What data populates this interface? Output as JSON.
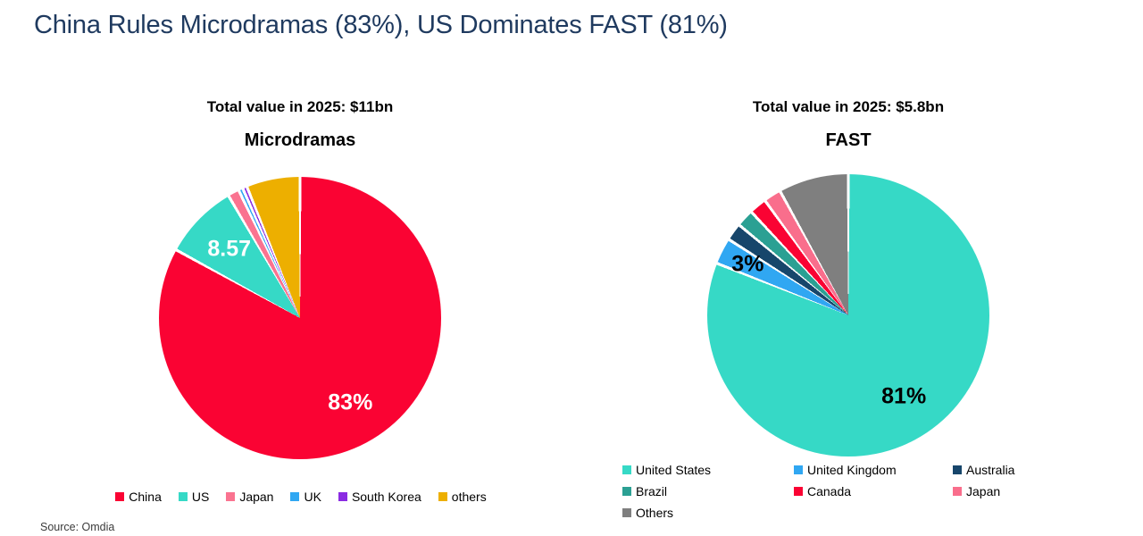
{
  "page": {
    "title": "China Rules Microdramas (83%), US Dominates FAST (81%)",
    "title_color": "#1F3A5F",
    "source": "Source: Omdia"
  },
  "chart_data": [
    {
      "type": "pie",
      "title": "Microdramas",
      "subtitle": "Total value in 2025: $11bn",
      "start_angle_deg": 0,
      "direction": "clockwise",
      "legend_position": "bottom-row",
      "slices": [
        {
          "label": "China",
          "value": 83,
          "color": "#FA0333",
          "data_label": "83%",
          "data_label_color": "#FFFFFF"
        },
        {
          "label": "US",
          "value": 8.57,
          "color": "#36D9C6",
          "data_label": "8.57",
          "data_label_color": "#FFFFFF"
        },
        {
          "label": "Japan",
          "value": 1.3,
          "color": "#FA7390",
          "data_label": "",
          "data_label_color": ""
        },
        {
          "label": "UK",
          "value": 0.5,
          "color": "#30A7F2",
          "data_label": "",
          "data_label_color": ""
        },
        {
          "label": "South Korea",
          "value": 0.5,
          "color": "#8A2BE2",
          "data_label": "",
          "data_label_color": ""
        },
        {
          "label": "others",
          "value": 6.13,
          "color": "#EDAF00",
          "data_label": "",
          "data_label_color": ""
        }
      ]
    },
    {
      "type": "pie",
      "title": "FAST",
      "subtitle": "Total value in 2025: $5.8bn",
      "start_angle_deg": 0,
      "direction": "clockwise",
      "legend_position": "bottom-grid-3col",
      "slices": [
        {
          "label": "United States",
          "value": 81,
          "color": "#36D9C6",
          "data_label": "81%",
          "data_label_color": "#000000"
        },
        {
          "label": "United Kingdom",
          "value": 3,
          "color": "#30A7F2",
          "data_label": "3%",
          "data_label_color": "#000000"
        },
        {
          "label": "Australia",
          "value": 2,
          "color": "#17466B",
          "data_label": "",
          "data_label_color": ""
        },
        {
          "label": "Brazil",
          "value": 2,
          "color": "#2BA093",
          "data_label": "",
          "data_label_color": ""
        },
        {
          "label": "Canada",
          "value": 2,
          "color": "#FA0333",
          "data_label": "",
          "data_label_color": ""
        },
        {
          "label": "Japan",
          "value": 2,
          "color": "#F96E8C",
          "data_label": "",
          "data_label_color": ""
        },
        {
          "label": "Others",
          "value": 8,
          "color": "#7F7F7F",
          "data_label": "",
          "data_label_color": ""
        }
      ]
    }
  ]
}
